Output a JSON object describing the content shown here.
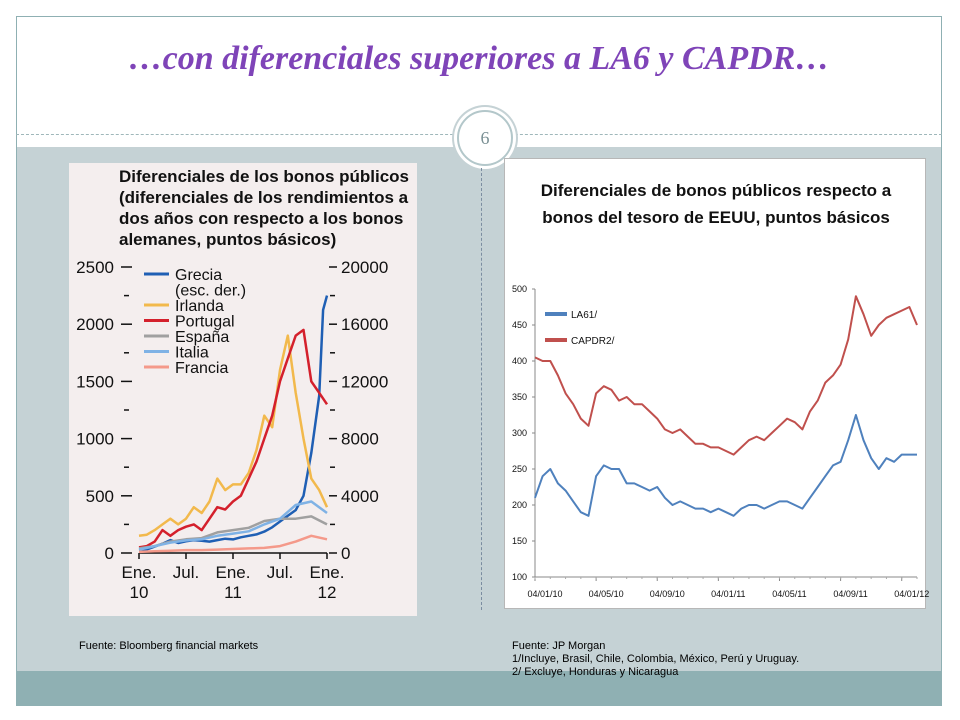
{
  "slide": {
    "title": "…con diferenciales superiores a LA6 y CAPDR…",
    "page_number": "6",
    "colors": {
      "title": "#7f44b8",
      "band": "#c5d2d5",
      "footer": "#8fb0b3"
    }
  },
  "left_source": "Fuente: Bloomberg financial markets",
  "right_source": {
    "line1": "Fuente: JP Morgan",
    "line2": "1/Incluye, Brasil, Chile, Colombia, México, Perú y Uruguay.",
    "line3": "2/ Excluye, Honduras y Nicaragua"
  },
  "chart_data": [
    {
      "type": "line",
      "title_lines": [
        "Diferenciales de los bonos públicos",
        "(diferenciales de los rendimientos a",
        "dos años con respecto a los bonos",
        "alemanes, puntos básicos)"
      ],
      "x_tick_labels": [
        [
          "Ene.",
          "10"
        ],
        [
          "Jul.",
          ""
        ],
        [
          "Ene.",
          "11"
        ],
        [
          "Jul.",
          ""
        ],
        [
          "Ene.",
          "12"
        ]
      ],
      "x_ticks": [
        0,
        6,
        12,
        18,
        24
      ],
      "xlim": [
        0,
        24
      ],
      "ylim_left": [
        0,
        2500
      ],
      "ylim_right": [
        0,
        20000
      ],
      "y_ticks_left": [
        0,
        500,
        1000,
        1500,
        2000,
        2500
      ],
      "y_ticks_right": [
        0,
        4000,
        8000,
        12000,
        16000,
        20000
      ],
      "grid": false,
      "legend_position": "top-left",
      "series": [
        {
          "name": "Grecia",
          "name2": "(esc. der.)",
          "color": "#1f5fb4",
          "axis": "right",
          "x": [
            0,
            1,
            2,
            3,
            4,
            5,
            6,
            7,
            8,
            9,
            10,
            11,
            12,
            13,
            14,
            15,
            16,
            17,
            18,
            19,
            20,
            21,
            22,
            23,
            23.5,
            24
          ],
          "y": [
            200,
            250,
            450,
            650,
            900,
            700,
            820,
            900,
            850,
            800,
            900,
            1000,
            950,
            1100,
            1200,
            1300,
            1500,
            1800,
            2200,
            2600,
            3000,
            4000,
            7000,
            11000,
            17000,
            18000
          ]
        },
        {
          "name": "Irlanda",
          "color": "#f2b94c",
          "axis": "left",
          "x": [
            0,
            1,
            2,
            3,
            4,
            5,
            6,
            7,
            8,
            9,
            10,
            11,
            12,
            13,
            14,
            15,
            16,
            17,
            18,
            19,
            20,
            21,
            22,
            23,
            24
          ],
          "y": [
            150,
            160,
            200,
            250,
            300,
            250,
            300,
            400,
            350,
            450,
            650,
            550,
            600,
            600,
            700,
            900,
            1200,
            1100,
            1600,
            1900,
            1400,
            1000,
            650,
            550,
            400
          ]
        },
        {
          "name": "Portugal",
          "color": "#d4202c",
          "axis": "left",
          "x": [
            0,
            1,
            2,
            3,
            4,
            5,
            6,
            7,
            8,
            9,
            10,
            11,
            12,
            13,
            14,
            15,
            16,
            17,
            18,
            19,
            20,
            21,
            22,
            23,
            24
          ],
          "y": [
            50,
            60,
            100,
            200,
            150,
            200,
            230,
            250,
            200,
            300,
            400,
            380,
            450,
            500,
            650,
            800,
            1000,
            1200,
            1500,
            1700,
            1900,
            1950,
            1500,
            1400,
            1300
          ]
        },
        {
          "name": "España",
          "color": "#a0a0a0",
          "axis": "left",
          "x": [
            0,
            2,
            4,
            6,
            8,
            10,
            12,
            14,
            16,
            18,
            20,
            22,
            24
          ],
          "y": [
            40,
            60,
            100,
            120,
            130,
            180,
            200,
            220,
            280,
            300,
            300,
            320,
            250
          ]
        },
        {
          "name": "Italia",
          "color": "#7fb2e5",
          "axis": "left",
          "x": [
            0,
            2,
            4,
            6,
            8,
            10,
            12,
            14,
            16,
            18,
            20,
            22,
            24
          ],
          "y": [
            30,
            60,
            90,
            110,
            120,
            150,
            170,
            190,
            250,
            300,
            420,
            450,
            350
          ]
        },
        {
          "name": "Francia",
          "color": "#f4998a",
          "axis": "left",
          "x": [
            0,
            2,
            4,
            6,
            8,
            10,
            12,
            14,
            16,
            18,
            20,
            22,
            24
          ],
          "y": [
            10,
            15,
            20,
            25,
            25,
            30,
            35,
            40,
            45,
            60,
            100,
            150,
            120
          ]
        }
      ]
    },
    {
      "type": "line",
      "title_lines": [
        "Diferenciales de bonos públicos respecto a",
        "bonos del tesoro de EEUU, puntos básicos"
      ],
      "x_tick_labels": [
        "04/01/10",
        "04/05/10",
        "04/09/10",
        "04/01/11",
        "04/05/11",
        "04/09/11",
        "04/01/12"
      ],
      "x_ticks": [
        0,
        4,
        8,
        12,
        16,
        20,
        24
      ],
      "xlim": [
        0,
        25
      ],
      "ylim": [
        100,
        500
      ],
      "y_ticks": [
        100,
        150,
        200,
        250,
        300,
        350,
        400,
        450,
        500
      ],
      "grid": false,
      "legend_position": "top-left",
      "series": [
        {
          "name": "LA61/",
          "color": "#4f81bd",
          "x": [
            0,
            0.5,
            1,
            1.5,
            2,
            2.5,
            3,
            3.5,
            4,
            4.5,
            5,
            5.5,
            6,
            6.5,
            7,
            7.5,
            8,
            8.5,
            9,
            9.5,
            10,
            10.5,
            11,
            11.5,
            12,
            12.5,
            13,
            13.5,
            14,
            14.5,
            15,
            15.5,
            16,
            16.5,
            17,
            17.5,
            18,
            18.5,
            19,
            19.5,
            20,
            20.5,
            21,
            21.5,
            22,
            22.5,
            23,
            23.5,
            24,
            24.5,
            25
          ],
          "y": [
            210,
            240,
            250,
            230,
            220,
            205,
            190,
            185,
            240,
            255,
            250,
            250,
            230,
            230,
            225,
            220,
            225,
            210,
            200,
            205,
            200,
            195,
            195,
            190,
            195,
            190,
            185,
            195,
            200,
            200,
            195,
            200,
            205,
            205,
            200,
            195,
            210,
            225,
            240,
            255,
            260,
            290,
            325,
            290,
            265,
            250,
            265,
            260,
            270,
            270,
            270
          ]
        },
        {
          "name": "CAPDR2/",
          "color": "#c0504d",
          "x": [
            0,
            0.5,
            1,
            1.5,
            2,
            2.5,
            3,
            3.5,
            4,
            4.5,
            5,
            5.5,
            6,
            6.5,
            7,
            7.5,
            8,
            8.5,
            9,
            9.5,
            10,
            10.5,
            11,
            11.5,
            12,
            12.5,
            13,
            13.5,
            14,
            14.5,
            15,
            15.5,
            16,
            16.5,
            17,
            17.5,
            18,
            18.5,
            19,
            19.5,
            20,
            20.5,
            21,
            21.5,
            22,
            22.5,
            23,
            23.5,
            24,
            24.5,
            25
          ],
          "y": [
            405,
            400,
            400,
            380,
            355,
            340,
            320,
            310,
            355,
            365,
            360,
            345,
            350,
            340,
            340,
            330,
            320,
            305,
            300,
            305,
            295,
            285,
            285,
            280,
            280,
            275,
            270,
            280,
            290,
            295,
            290,
            300,
            310,
            320,
            315,
            305,
            330,
            345,
            370,
            380,
            395,
            430,
            490,
            465,
            435,
            450,
            460,
            465,
            470,
            475,
            450
          ]
        }
      ]
    }
  ]
}
